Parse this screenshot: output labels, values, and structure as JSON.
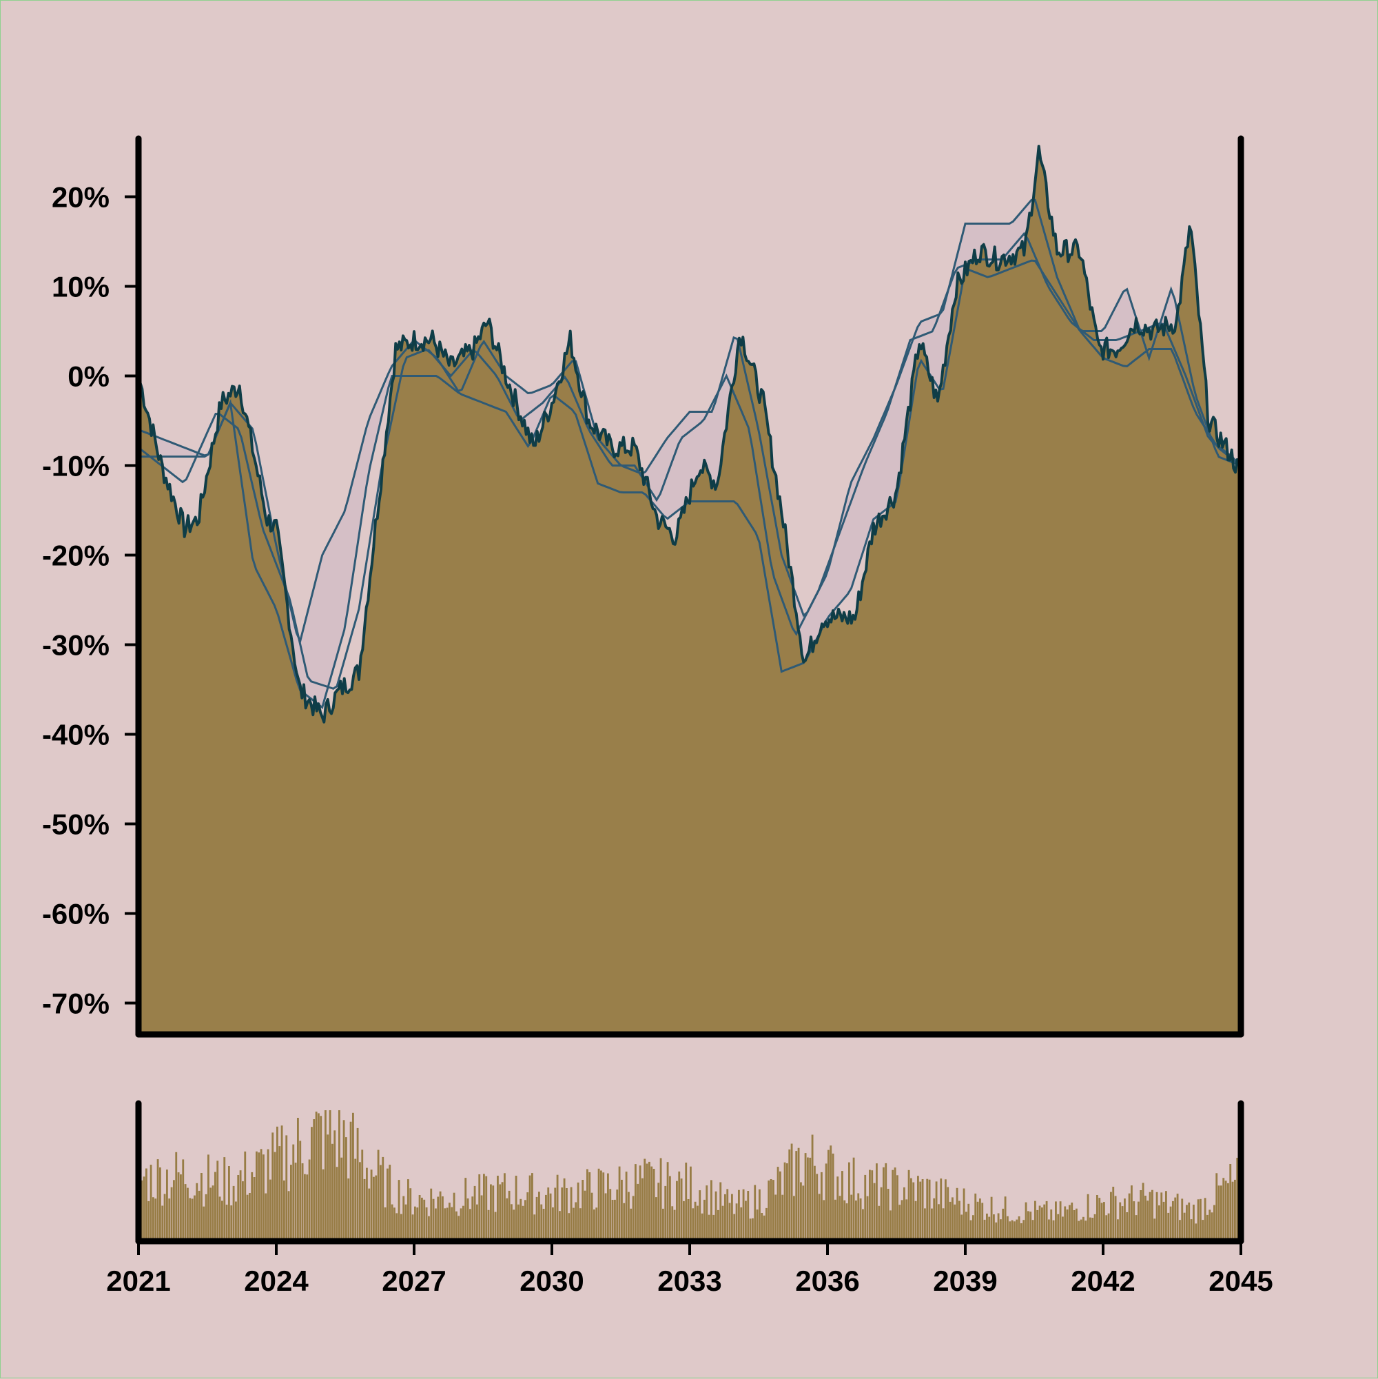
{
  "chart_data": [
    {
      "type": "area",
      "title": "",
      "xlabel": "",
      "ylabel": "",
      "xlim": [
        2021,
        2045
      ],
      "ylim": [
        -0.735,
        0.265
      ],
      "y_ticks": [
        {
          "value": 0.2,
          "label": "20%"
        },
        {
          "value": 0.1,
          "label": "10%"
        },
        {
          "value": 0.0,
          "label": "0%"
        },
        {
          "value": -0.1,
          "label": "-10%"
        },
        {
          "value": -0.2,
          "label": "-20%"
        },
        {
          "value": -0.3,
          "label": "-30%"
        },
        {
          "value": -0.4,
          "label": "-40%"
        },
        {
          "value": -0.5,
          "label": "-50%"
        },
        {
          "value": -0.6,
          "label": "-60%"
        },
        {
          "value": -0.7,
          "label": "-70%"
        }
      ],
      "grid": false,
      "legend": "none",
      "colors": {
        "background": "#dfc9c9",
        "area_fill": "#977c45",
        "price_line": "#0f3d47",
        "band_lines": "#2f5a75",
        "band_fill": "#d5bfc6",
        "axes": "#000000"
      },
      "series": [
        {
          "role": "price",
          "x": [
            2021.0,
            2021.5,
            2022.0,
            2022.3,
            2022.8,
            2023.2,
            2023.8,
            2024.0,
            2024.5,
            2025.0,
            2025.4,
            2025.8,
            2026.2,
            2026.6,
            2027.0,
            2027.4,
            2027.8,
            2028.3,
            2028.6,
            2029.0,
            2029.6,
            2030.0,
            2030.4,
            2030.8,
            2031.3,
            2031.8,
            2032.3,
            2032.7,
            2033.2,
            2033.6,
            2034.1,
            2034.6,
            2035.0,
            2035.5,
            2035.9,
            2036.3,
            2036.6,
            2037.0,
            2037.5,
            2038.0,
            2038.4,
            2038.8,
            2039.3,
            2039.7,
            2040.3,
            2040.6,
            2041.0,
            2041.5,
            2041.9,
            2042.3,
            2042.7,
            2043.1,
            2043.6,
            2043.9,
            2044.3,
            2044.8,
            2045.0
          ],
          "y": [
            0.0,
            -0.1,
            -0.17,
            -0.16,
            -0.03,
            -0.01,
            -0.16,
            -0.17,
            -0.35,
            -0.38,
            -0.35,
            -0.33,
            -0.15,
            0.03,
            0.04,
            0.04,
            0.01,
            0.03,
            0.06,
            0.0,
            -0.08,
            -0.03,
            0.04,
            -0.05,
            -0.08,
            -0.08,
            -0.16,
            -0.18,
            -0.1,
            -0.12,
            0.05,
            -0.03,
            -0.15,
            -0.32,
            -0.27,
            -0.27,
            -0.27,
            -0.17,
            -0.13,
            0.04,
            -0.03,
            0.1,
            0.14,
            0.13,
            0.14,
            0.25,
            0.14,
            0.14,
            0.03,
            0.03,
            0.06,
            0.05,
            0.06,
            0.17,
            -0.05,
            -0.09,
            -0.11
          ]
        },
        {
          "role": "band_upper",
          "x": [
            2021.0,
            2022.5,
            2023.0,
            2023.5,
            2024.0,
            2024.5,
            2025.0,
            2025.5,
            2026.0,
            2026.5,
            2027.0,
            2027.5,
            2028.0,
            2028.5,
            2029.0,
            2029.5,
            2030.0,
            2030.5,
            2031.0,
            2031.5,
            2032.0,
            2032.5,
            2033.0,
            2033.5,
            2034.0,
            2034.5,
            2035.0,
            2035.5,
            2036.0,
            2036.5,
            2037.0,
            2037.5,
            2038.0,
            2038.5,
            2039.0,
            2039.5,
            2040.0,
            2040.5,
            2041.0,
            2041.5,
            2042.0,
            2042.5,
            2043.0,
            2043.5,
            2044.0,
            2044.5,
            2045.0
          ],
          "y": [
            -0.09,
            -0.09,
            -0.03,
            -0.06,
            -0.19,
            -0.3,
            -0.2,
            -0.15,
            -0.05,
            0.01,
            0.04,
            0.02,
            -0.02,
            0.04,
            0.0,
            -0.02,
            -0.01,
            0.02,
            -0.07,
            -0.1,
            -0.11,
            -0.07,
            -0.04,
            -0.04,
            0.05,
            -0.06,
            -0.2,
            -0.27,
            -0.22,
            -0.12,
            -0.07,
            -0.01,
            0.06,
            0.07,
            0.17,
            0.17,
            0.17,
            0.2,
            0.11,
            0.05,
            0.05,
            0.1,
            0.02,
            0.1,
            -0.02,
            -0.09,
            -0.1
          ]
        },
        {
          "role": "band_lower",
          "x": [
            2021.0,
            2022.5,
            2023.0,
            2023.5,
            2024.0,
            2024.5,
            2025.0,
            2025.5,
            2026.0,
            2026.5,
            2027.0,
            2027.5,
            2028.0,
            2028.5,
            2029.0,
            2029.5,
            2030.0,
            2030.5,
            2031.0,
            2031.5,
            2032.0,
            2032.5,
            2033.0,
            2033.5,
            2034.0,
            2034.5,
            2035.0,
            2035.5,
            2036.0,
            2036.5,
            2037.0,
            2037.5,
            2038.0,
            2038.5,
            2039.0,
            2039.5,
            2040.0,
            2040.5,
            2041.0,
            2041.5,
            2042.0,
            2042.5,
            2043.0,
            2043.5,
            2044.0,
            2044.5,
            2045.0
          ],
          "y": [
            -0.06,
            -0.09,
            -0.03,
            -0.21,
            -0.26,
            -0.35,
            -0.37,
            -0.28,
            -0.11,
            0.0,
            0.0,
            0.0,
            -0.02,
            -0.03,
            -0.04,
            -0.08,
            -0.02,
            -0.04,
            -0.12,
            -0.13,
            -0.13,
            -0.16,
            -0.14,
            -0.14,
            -0.14,
            -0.18,
            -0.33,
            -0.32,
            -0.27,
            -0.24,
            -0.16,
            -0.14,
            0.02,
            -0.02,
            0.12,
            0.11,
            0.12,
            0.13,
            0.09,
            0.05,
            0.02,
            0.01,
            0.03,
            0.03,
            -0.04,
            -0.08,
            -0.1
          ]
        },
        {
          "role": "moving_average",
          "x": [
            2021.0,
            2022.0,
            2022.7,
            2023.2,
            2023.7,
            2024.3,
            2024.7,
            2025.3,
            2025.8,
            2026.3,
            2026.8,
            2027.3,
            2027.8,
            2028.3,
            2028.8,
            2029.3,
            2029.8,
            2030.3,
            2030.8,
            2031.3,
            2031.8,
            2032.3,
            2032.8,
            2033.3,
            2033.8,
            2034.3,
            2034.8,
            2035.3,
            2035.8,
            2036.3,
            2036.8,
            2037.3,
            2037.8,
            2038.3,
            2038.8,
            2039.3,
            2039.8,
            2040.3,
            2040.8,
            2041.3,
            2041.8,
            2042.3,
            2042.8,
            2043.3,
            2043.8,
            2044.3,
            2044.8,
            2045.0
          ],
          "y": [
            -0.08,
            -0.12,
            -0.04,
            -0.06,
            -0.17,
            -0.25,
            -0.34,
            -0.35,
            -0.26,
            -0.1,
            0.02,
            0.03,
            0.0,
            0.03,
            0.0,
            -0.05,
            -0.03,
            0.0,
            -0.06,
            -0.1,
            -0.1,
            -0.14,
            -0.07,
            -0.05,
            0.0,
            -0.06,
            -0.22,
            -0.29,
            -0.24,
            -0.17,
            -0.1,
            -0.04,
            0.04,
            0.05,
            0.12,
            0.13,
            0.13,
            0.16,
            0.1,
            0.06,
            0.04,
            0.04,
            0.05,
            0.06,
            0.0,
            -0.07,
            -0.09,
            -0.1
          ]
        }
      ]
    },
    {
      "type": "bar",
      "xlim": [
        2021,
        2045
      ],
      "x_ticks": [
        "2021",
        "2024",
        "2027",
        "2030",
        "2033",
        "2036",
        "2039",
        "2042",
        "2045"
      ],
      "x_tick_values": [
        2021,
        2024,
        2027,
        2030,
        2033,
        2036,
        2039,
        2042,
        2045
      ],
      "colors": {
        "bars": "#977c45",
        "axes": "#000000"
      },
      "volume_profile": {
        "x": [
          2021.0,
          2022.0,
          2023.0,
          2024.0,
          2024.5,
          2025.0,
          2025.5,
          2026.0,
          2026.5,
          2027.0,
          2028.0,
          2029.0,
          2030.0,
          2031.0,
          2032.0,
          2033.0,
          2034.0,
          2034.5,
          2035.0,
          2035.5,
          2036.0,
          2036.5,
          2037.0,
          2038.0,
          2039.0,
          2040.0,
          2041.0,
          2042.0,
          2043.0,
          2044.0,
          2044.5,
          2045.0
        ],
        "level": [
          0.45,
          0.48,
          0.42,
          0.58,
          0.68,
          0.78,
          0.74,
          0.55,
          0.38,
          0.3,
          0.32,
          0.36,
          0.34,
          0.38,
          0.43,
          0.4,
          0.25,
          0.3,
          0.42,
          0.6,
          0.52,
          0.44,
          0.4,
          0.38,
          0.28,
          0.22,
          0.2,
          0.28,
          0.3,
          0.22,
          0.35,
          0.45
        ]
      },
      "bar_count": 480
    }
  ]
}
